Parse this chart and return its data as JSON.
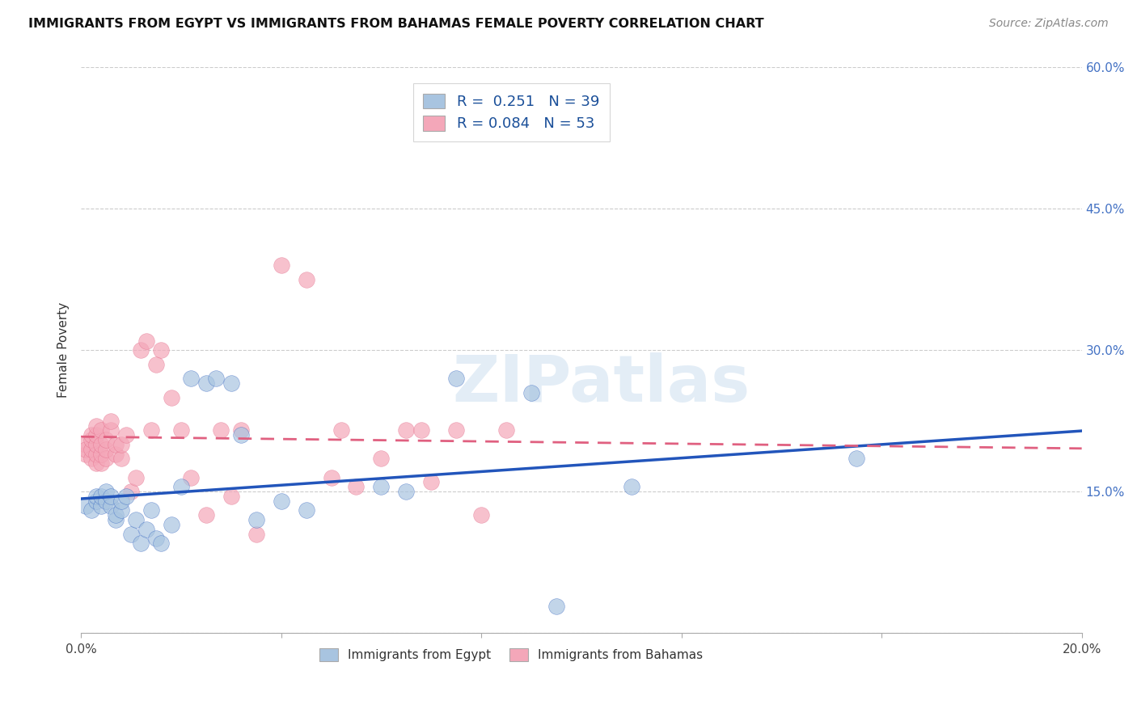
{
  "title": "IMMIGRANTS FROM EGYPT VS IMMIGRANTS FROM BAHAMAS FEMALE POVERTY CORRELATION CHART",
  "source": "Source: ZipAtlas.com",
  "ylabel": "Female Poverty",
  "x_min": 0.0,
  "x_max": 0.2,
  "y_min": 0.0,
  "y_max": 0.6,
  "x_ticks": [
    0.0,
    0.04,
    0.08,
    0.12,
    0.16,
    0.2
  ],
  "x_tick_labels": [
    "0.0%",
    "",
    "",
    "",
    "",
    "20.0%"
  ],
  "y_ticks": [
    0.0,
    0.15,
    0.3,
    0.45,
    0.6
  ],
  "y_tick_labels_right": [
    "",
    "15.0%",
    "30.0%",
    "45.0%",
    "60.0%"
  ],
  "egypt_color": "#a8c4e0",
  "bahamas_color": "#f4a7b9",
  "egypt_line_color": "#2255bb",
  "bahamas_line_color": "#e06080",
  "egypt_R": 0.251,
  "egypt_N": 39,
  "bahamas_R": 0.084,
  "bahamas_N": 53,
  "egypt_x": [
    0.001,
    0.002,
    0.003,
    0.003,
    0.004,
    0.004,
    0.005,
    0.005,
    0.006,
    0.006,
    0.007,
    0.007,
    0.008,
    0.008,
    0.009,
    0.01,
    0.011,
    0.012,
    0.013,
    0.014,
    0.015,
    0.016,
    0.018,
    0.02,
    0.022,
    0.025,
    0.027,
    0.03,
    0.032,
    0.035,
    0.04,
    0.045,
    0.06,
    0.065,
    0.075,
    0.09,
    0.11,
    0.155,
    0.095
  ],
  "egypt_y": [
    0.135,
    0.13,
    0.14,
    0.145,
    0.135,
    0.145,
    0.14,
    0.15,
    0.135,
    0.145,
    0.12,
    0.125,
    0.13,
    0.14,
    0.145,
    0.105,
    0.12,
    0.095,
    0.11,
    0.13,
    0.1,
    0.095,
    0.115,
    0.155,
    0.27,
    0.265,
    0.27,
    0.265,
    0.21,
    0.12,
    0.14,
    0.13,
    0.155,
    0.15,
    0.27,
    0.255,
    0.155,
    0.185,
    0.028
  ],
  "bahamas_x": [
    0.001,
    0.001,
    0.001,
    0.002,
    0.002,
    0.002,
    0.002,
    0.003,
    0.003,
    0.003,
    0.003,
    0.003,
    0.004,
    0.004,
    0.004,
    0.004,
    0.005,
    0.005,
    0.005,
    0.006,
    0.006,
    0.007,
    0.007,
    0.008,
    0.008,
    0.009,
    0.01,
    0.011,
    0.012,
    0.013,
    0.014,
    0.015,
    0.016,
    0.018,
    0.02,
    0.022,
    0.025,
    0.028,
    0.03,
    0.032,
    0.035,
    0.04,
    0.045,
    0.05,
    0.052,
    0.055,
    0.06,
    0.065,
    0.068,
    0.07,
    0.075,
    0.08,
    0.085
  ],
  "bahamas_y": [
    0.19,
    0.2,
    0.195,
    0.185,
    0.195,
    0.205,
    0.21,
    0.18,
    0.19,
    0.2,
    0.21,
    0.22,
    0.18,
    0.19,
    0.2,
    0.215,
    0.185,
    0.195,
    0.205,
    0.215,
    0.225,
    0.19,
    0.2,
    0.185,
    0.2,
    0.21,
    0.15,
    0.165,
    0.3,
    0.31,
    0.215,
    0.285,
    0.3,
    0.25,
    0.215,
    0.165,
    0.125,
    0.215,
    0.145,
    0.215,
    0.105,
    0.39,
    0.375,
    0.165,
    0.215,
    0.155,
    0.185,
    0.215,
    0.215,
    0.16,
    0.215,
    0.125,
    0.215
  ]
}
